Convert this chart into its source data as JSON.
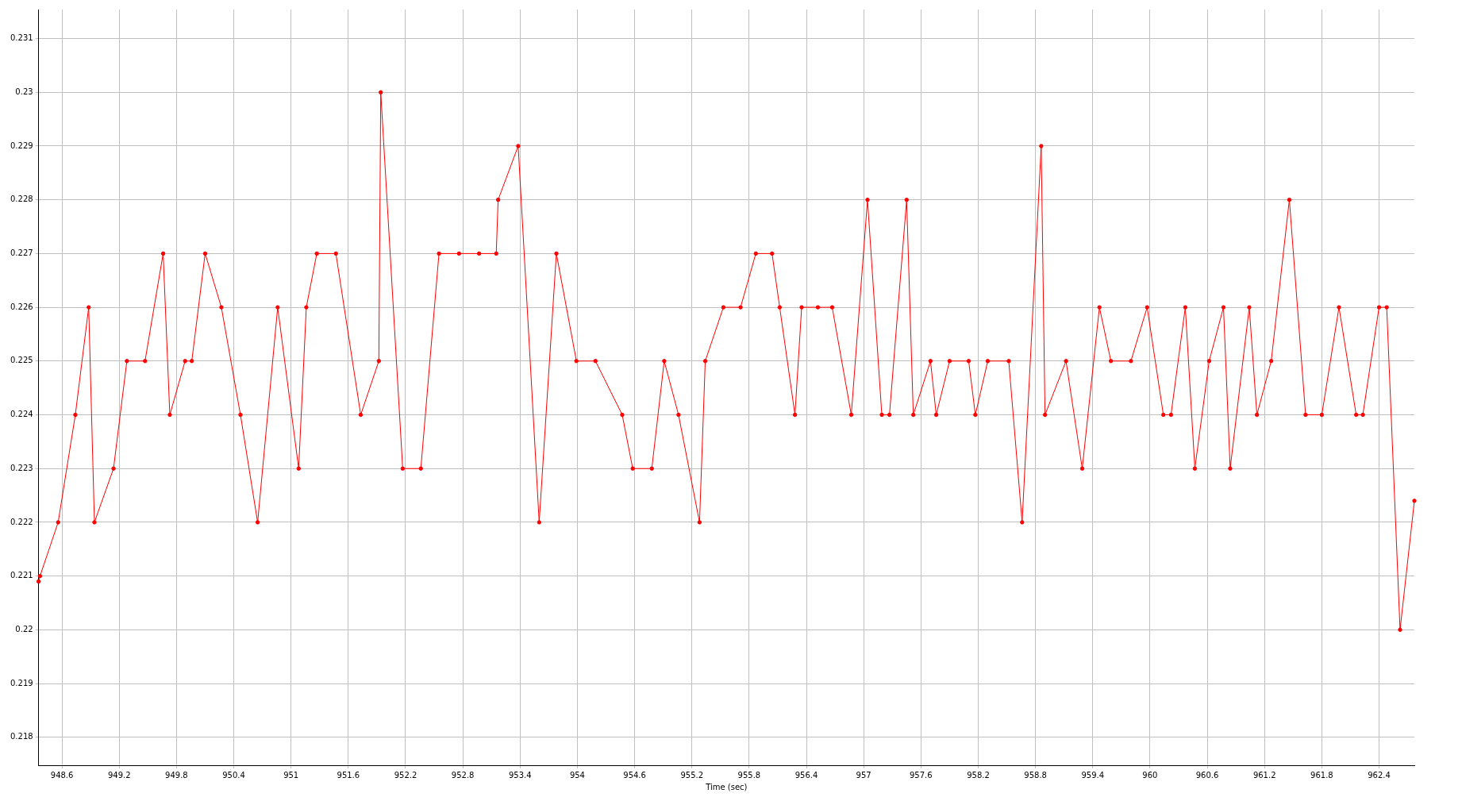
{
  "chart_data": {
    "type": "line",
    "xlabel": "Time (sec)",
    "x": [
      948.355,
      948.37,
      948.56,
      948.74,
      948.88,
      948.94,
      949.14,
      949.28,
      949.47,
      949.66,
      949.73,
      949.89,
      949.96,
      950.1,
      950.27,
      950.47,
      950.65,
      950.86,
      951.08,
      951.16,
      951.27,
      951.47,
      951.73,
      951.92,
      951.94,
      952.17,
      952.36,
      952.55,
      952.76,
      952.97,
      953.15,
      953.17,
      953.38,
      953.6,
      953.78,
      953.99,
      954.19,
      954.47,
      954.58,
      954.78,
      954.91,
      955.06,
      955.28,
      955.34,
      955.53,
      955.71,
      955.87,
      956.04,
      956.12,
      956.28,
      956.35,
      956.52,
      956.67,
      956.87,
      957.04,
      957.19,
      957.27,
      957.45,
      957.52,
      957.7,
      957.76,
      957.9,
      958.1,
      958.17,
      958.3,
      958.52,
      958.66,
      958.86,
      958.9,
      959.12,
      959.29,
      959.47,
      959.59,
      959.8,
      959.97,
      960.14,
      960.22,
      960.37,
      960.47,
      960.62,
      960.77,
      960.84,
      961.04,
      961.12,
      961.27,
      961.46,
      961.63,
      961.8,
      961.98,
      962.16,
      962.23,
      962.4,
      962.48,
      962.62,
      962.77
    ],
    "series": [
      {
        "color": "#ff0000",
        "values": [
          0.2209,
          0.221,
          0.222,
          0.224,
          0.226,
          0.222,
          0.223,
          0.225,
          0.225,
          0.227,
          0.224,
          0.225,
          0.225,
          0.227,
          0.226,
          0.224,
          0.222,
          0.226,
          0.223,
          0.226,
          0.227,
          0.227,
          0.224,
          0.225,
          0.23,
          0.223,
          0.223,
          0.227,
          0.227,
          0.227,
          0.227,
          0.228,
          0.229,
          0.222,
          0.227,
          0.225,
          0.225,
          0.224,
          0.223,
          0.223,
          0.225,
          0.224,
          0.222,
          0.225,
          0.226,
          0.226,
          0.227,
          0.227,
          0.226,
          0.224,
          0.226,
          0.226,
          0.226,
          0.224,
          0.228,
          0.224,
          0.224,
          0.228,
          0.224,
          0.225,
          0.224,
          0.225,
          0.225,
          0.224,
          0.225,
          0.225,
          0.222,
          0.229,
          0.224,
          0.225,
          0.223,
          0.226,
          0.225,
          0.225,
          0.226,
          0.224,
          0.224,
          0.226,
          0.223,
          0.225,
          0.226,
          0.223,
          0.226,
          0.224,
          0.225,
          0.228,
          0.224,
          0.224,
          0.226,
          0.224,
          0.224,
          0.226,
          0.226,
          0.22,
          0.2224
        ]
      }
    ],
    "xlim": [
      948.355,
      962.77
    ],
    "xticks": [
      948.6,
      949.2,
      949.8,
      950.4,
      951,
      951.6,
      952.2,
      952.8,
      953.4,
      954,
      954.6,
      955.2,
      955.8,
      956.4,
      957,
      957.6,
      958.2,
      958.8,
      959.4,
      960,
      960.6,
      961.2,
      961.8,
      962.4
    ],
    "ylim": [
      0.21748,
      0.23154
    ],
    "yticks": [
      0.218,
      0.219,
      0.22,
      0.221,
      0.222,
      0.223,
      0.224,
      0.225,
      0.226,
      0.227,
      0.228,
      0.229,
      0.23,
      0.231
    ],
    "grid": true,
    "legend": false,
    "marker": "circle",
    "line_style": "solid"
  }
}
